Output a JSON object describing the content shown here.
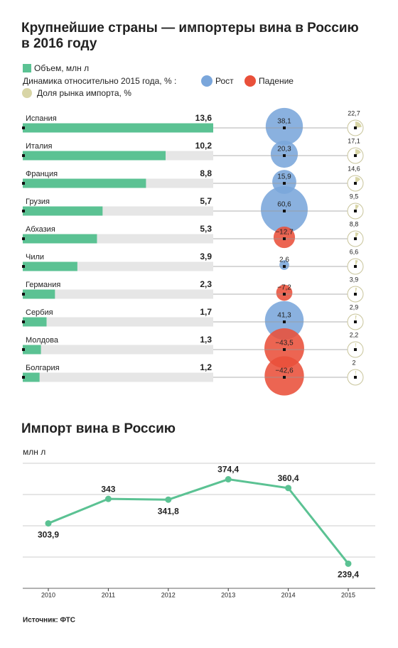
{
  "chart_data": [
    {
      "type": "bar",
      "title": [
        "Крупнейшие страны — импортеры вина в Россию",
        "в 2016 году"
      ],
      "categories": [
        "Испания",
        "Италия",
        "Франция",
        "Грузия",
        "Абхазия",
        "Чили",
        "Германия",
        "Сербия",
        "Молдова",
        "Болгария"
      ],
      "series": [
        {
          "name": "Объем, млн л",
          "color": "#5bc293",
          "values": [
            13.6,
            10.2,
            8.8,
            5.7,
            5.3,
            3.9,
            2.3,
            1.7,
            1.3,
            1.2
          ],
          "value_labels": [
            "13,6",
            "10,2",
            "8,8",
            "5,7",
            "5,3",
            "3,9",
            "2,3",
            "1,7",
            "1,3",
            "1,2"
          ]
        },
        {
          "name": "Динамика относительно 2015 года, % :",
          "up_name": "Рост",
          "down_name": "Падение",
          "up_color": "#7aa6db",
          "down_color": "#e9503a",
          "values": [
            38.1,
            20.3,
            15.9,
            60.6,
            -12.7,
            2.6,
            -7.2,
            41.3,
            -43.5,
            -42.6
          ],
          "value_labels": [
            "38,1",
            "20,3",
            "15,9",
            "60,6",
            "−12,7",
            "2,6",
            "−7,2",
            "41,3",
            "−43,5",
            "−42,6"
          ]
        },
        {
          "name": "Доля рынка импорта, %",
          "color": "#d8d5a6",
          "values": [
            22.7,
            17.1,
            14.6,
            9.5,
            8.8,
            6.6,
            3.9,
            2.9,
            2.2,
            2
          ],
          "value_labels": [
            "22,7",
            "17,1",
            "14,6",
            "9,5",
            "8,8",
            "6,6",
            "3,9",
            "2,9",
            "2,2",
            "2"
          ]
        }
      ]
    },
    {
      "type": "line",
      "title": "Импорт вина в Россию",
      "ylabel": "млн л",
      "categories": [
        "2010",
        "2011",
        "2012",
        "2013",
        "2014",
        "2015"
      ],
      "values": [
        303.9,
        343,
        341.8,
        374.4,
        360.4,
        239.4
      ],
      "value_labels": [
        "303,9",
        "343",
        "341,8",
        "374,4",
        "360,4",
        "239,4"
      ],
      "color": "#5bc293",
      "ylim": [
        200,
        400
      ],
      "yticks": [
        200,
        250,
        300,
        350,
        400
      ],
      "grid": true
    }
  ],
  "source": "Источник: ФТС"
}
